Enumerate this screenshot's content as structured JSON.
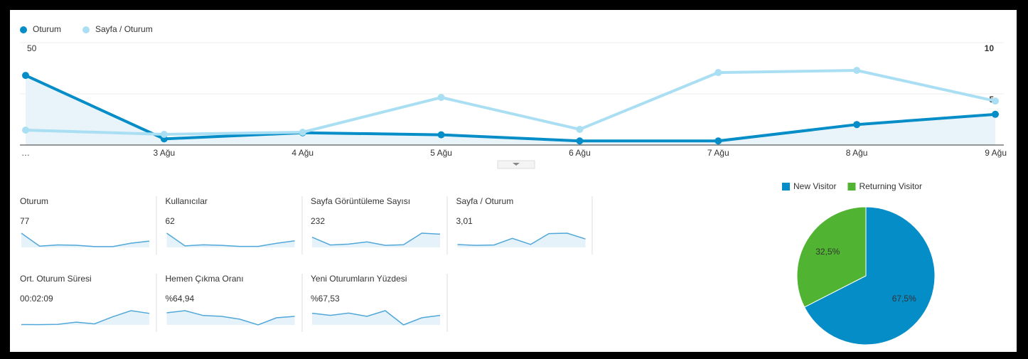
{
  "main_chart": {
    "type": "line",
    "categories": [
      "…",
      "3 Ağu",
      "4 Ağu",
      "5 Ağu",
      "6 Ağu",
      "7 Ağu",
      "8 Ağu",
      "9 Ağu"
    ],
    "series": [
      {
        "name": "Oturum",
        "color": "#058dc7",
        "values": [
          34,
          3,
          6,
          5,
          2,
          2,
          10,
          15
        ]
      },
      {
        "name": "Sayfa / Oturum",
        "color": "#aadff3",
        "values": [
          1.46,
          1.04,
          1.25,
          4.65,
          1.53,
          7.08,
          7.29,
          4.3
        ],
        "axis": "y2"
      }
    ],
    "ylim": [
      0,
      50
    ],
    "yticks": [
      25,
      50
    ],
    "y2lim": [
      0,
      10
    ],
    "y2ticks": [
      5,
      10
    ],
    "grid": true
  },
  "spark_color": "#50a7d9",
  "metrics": [
    {
      "label": "Oturum",
      "value": "77",
      "spark": [
        34,
        3,
        6,
        5,
        2,
        2,
        10,
        15
      ]
    },
    {
      "label": "Kullanıcılar",
      "value": "62",
      "spark": [
        28,
        3,
        5,
        4,
        2,
        2,
        8,
        13
      ]
    },
    {
      "label": "Sayfa Görüntüleme Sayısı",
      "value": "232",
      "spark": [
        50,
        12,
        16,
        27,
        10,
        13,
        70,
        65
      ]
    },
    {
      "label": "Sayfa / Oturum",
      "value": "3,01",
      "spark": [
        1.46,
        1.04,
        1.25,
        4.65,
        1.53,
        7.08,
        7.29,
        4.3
      ]
    },
    {
      "label": "Ort. Oturum Süresi",
      "value": "00:02:09",
      "spark": [
        5,
        4,
        8,
        40,
        15,
        120,
        210,
        170
      ]
    },
    {
      "label": "Hemen Çıkma Oranı",
      "value": "%64,94",
      "spark": [
        85,
        100,
        66,
        60,
        40,
        0,
        50,
        60
      ]
    },
    {
      "label": "Yeni Oturumların Yüzdesi",
      "value": "%67,53",
      "spark": [
        82,
        67,
        83,
        60,
        100,
        0,
        50,
        67
      ]
    }
  ],
  "pie_chart": {
    "type": "pie",
    "categories": [
      "New Visitor",
      "Returning Visitor"
    ],
    "values": [
      67.5,
      32.5
    ],
    "value_labels": [
      "67,5%",
      "32,5%"
    ],
    "colors": [
      "#058dc7",
      "#50b432"
    ]
  }
}
